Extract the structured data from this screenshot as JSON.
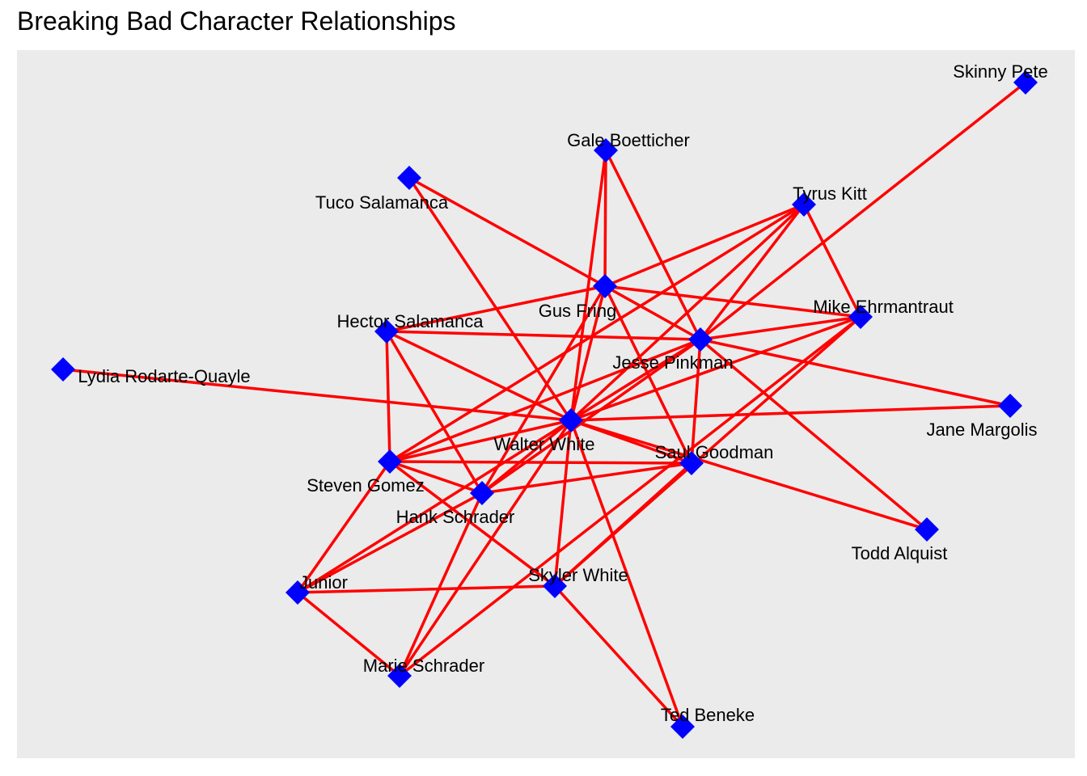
{
  "title": "Breaking Bad Character Relationships",
  "colors": {
    "panel": "#ebebeb",
    "edge": "#ff0000",
    "node": "#0000ff",
    "text": "#000000"
  },
  "node_shape": "diamond",
  "nodes": [
    {
      "id": "walter",
      "label": "Walter White"
    },
    {
      "id": "jesse",
      "label": "Jesse Pinkman"
    },
    {
      "id": "gus",
      "label": "Gus Fring"
    },
    {
      "id": "saul",
      "label": "Saul Goodman"
    },
    {
      "id": "hank",
      "label": "Hank Schrader"
    },
    {
      "id": "steven",
      "label": "Steven Gomez"
    },
    {
      "id": "skyler",
      "label": "Skyler White"
    },
    {
      "id": "marie",
      "label": "Marie Schrader"
    },
    {
      "id": "junior",
      "label": "Junior"
    },
    {
      "id": "hector",
      "label": "Hector Salamanca"
    },
    {
      "id": "tuco",
      "label": "Tuco Salamanca"
    },
    {
      "id": "gale",
      "label": "Gale Boetticher"
    },
    {
      "id": "tyrus",
      "label": "Tyrus Kitt"
    },
    {
      "id": "mike",
      "label": "Mike Ehrmantraut"
    },
    {
      "id": "skinny",
      "label": "Skinny Pete"
    },
    {
      "id": "lydia",
      "label": "Lydia Rodarte-Quayle"
    },
    {
      "id": "jane",
      "label": "Jane Margolis"
    },
    {
      "id": "todd",
      "label": "Todd Alquist"
    },
    {
      "id": "ted",
      "label": "Ted Beneke"
    }
  ],
  "edges": [
    [
      "walter",
      "jesse"
    ],
    [
      "walter",
      "gus"
    ],
    [
      "walter",
      "saul"
    ],
    [
      "walter",
      "hank"
    ],
    [
      "walter",
      "steven"
    ],
    [
      "walter",
      "skyler"
    ],
    [
      "walter",
      "marie"
    ],
    [
      "walter",
      "junior"
    ],
    [
      "walter",
      "hector"
    ],
    [
      "walter",
      "tuco"
    ],
    [
      "walter",
      "gale"
    ],
    [
      "walter",
      "tyrus"
    ],
    [
      "walter",
      "mike"
    ],
    [
      "walter",
      "lydia"
    ],
    [
      "walter",
      "jane"
    ],
    [
      "walter",
      "todd"
    ],
    [
      "walter",
      "ted"
    ],
    [
      "jesse",
      "gus"
    ],
    [
      "jesse",
      "saul"
    ],
    [
      "jesse",
      "hank"
    ],
    [
      "jesse",
      "steven"
    ],
    [
      "jesse",
      "hector"
    ],
    [
      "jesse",
      "gale"
    ],
    [
      "jesse",
      "tyrus"
    ],
    [
      "jesse",
      "mike"
    ],
    [
      "jesse",
      "skinny"
    ],
    [
      "jesse",
      "jane"
    ],
    [
      "jesse",
      "todd"
    ],
    [
      "gus",
      "gale"
    ],
    [
      "gus",
      "tyrus"
    ],
    [
      "gus",
      "mike"
    ],
    [
      "gus",
      "hector"
    ],
    [
      "gus",
      "tuco"
    ],
    [
      "gus",
      "saul"
    ],
    [
      "gus",
      "hank"
    ],
    [
      "hector",
      "steven"
    ],
    [
      "hector",
      "hank"
    ],
    [
      "saul",
      "steven"
    ],
    [
      "saul",
      "hank"
    ],
    [
      "saul",
      "skyler"
    ],
    [
      "steven",
      "hank"
    ],
    [
      "steven",
      "skyler"
    ],
    [
      "steven",
      "junior"
    ],
    [
      "steven",
      "tyrus"
    ],
    [
      "hank",
      "marie"
    ],
    [
      "hank",
      "junior"
    ],
    [
      "skyler",
      "junior"
    ],
    [
      "skyler",
      "ted"
    ],
    [
      "skyler",
      "mike"
    ],
    [
      "junior",
      "marie"
    ],
    [
      "tyrus",
      "mike"
    ],
    [
      "mike",
      "marie"
    ]
  ]
}
